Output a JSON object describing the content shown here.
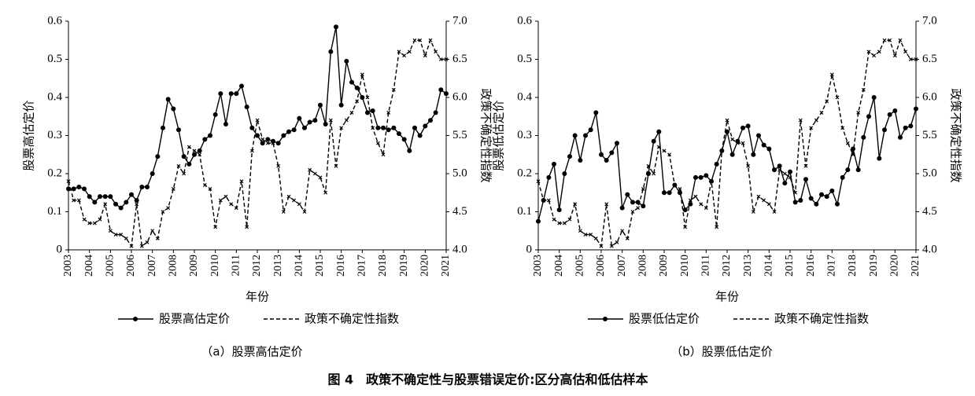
{
  "caption": "图 4　政策不确定性与股票错误定价:区分高估和低估样本",
  "chart_data": [
    {
      "type": "line",
      "title": "（a）股票高估定价",
      "xlabel": "年份",
      "ylabel": "股票高估定价",
      "y2label": "政策不确定性指数",
      "x": [
        2003,
        2003.25,
        2003.5,
        2003.75,
        2004,
        2004.25,
        2004.5,
        2004.75,
        2005,
        2005.25,
        2005.5,
        2005.75,
        2006,
        2006.25,
        2006.5,
        2006.75,
        2007,
        2007.25,
        2007.5,
        2007.75,
        2008,
        2008.25,
        2008.5,
        2008.75,
        2009,
        2009.25,
        2009.5,
        2009.75,
        2010,
        2010.25,
        2010.5,
        2010.75,
        2011,
        2011.25,
        2011.5,
        2011.75,
        2012,
        2012.25,
        2012.5,
        2012.75,
        2013,
        2013.25,
        2013.5,
        2013.75,
        2014,
        2014.25,
        2014.5,
        2014.75,
        2015,
        2015.25,
        2015.5,
        2015.75,
        2016,
        2016.25,
        2016.5,
        2016.75,
        2017,
        2017.25,
        2017.5,
        2017.75,
        2018,
        2018.25,
        2018.5,
        2018.75,
        2019,
        2019.25,
        2019.5,
        2019.75,
        2020,
        2020.25,
        2020.5,
        2020.75,
        2021
      ],
      "xlim": [
        2003,
        2021
      ],
      "xticks": [
        2003,
        2004,
        2005,
        2006,
        2007,
        2008,
        2009,
        2010,
        2011,
        2012,
        2013,
        2014,
        2015,
        2016,
        2017,
        2018,
        2019,
        2020,
        2021
      ],
      "ylim": [
        0,
        0.6
      ],
      "yticks": [
        0,
        0.1,
        0.2,
        0.3,
        0.4,
        0.5,
        0.6
      ],
      "y2lim": [
        4,
        7
      ],
      "y2ticks": [
        {
          "value": 4,
          "label": "4.0"
        },
        4.5,
        {
          "value": 5,
          "label": "5.0"
        },
        5.5,
        {
          "value": 6,
          "label": "6.0"
        },
        6.5,
        {
          "value": 7,
          "label": "7.0"
        }
      ],
      "series": [
        {
          "name": "股票高估定价",
          "color": "#000000",
          "line_style": "solid",
          "values": [
            0.16,
            0.16,
            0.165,
            0.16,
            0.14,
            0.125,
            0.14,
            0.14,
            0.14,
            0.12,
            0.11,
            0.125,
            0.145,
            0.13,
            0.165,
            0.165,
            0.2,
            0.245,
            0.32,
            0.395,
            0.37,
            0.315,
            0.245,
            0.225,
            0.25,
            0.26,
            0.29,
            0.3,
            0.355,
            0.41,
            0.33,
            0.41,
            0.41,
            0.43,
            0.375,
            0.32,
            0.3,
            0.28,
            0.29,
            0.285,
            0.28,
            0.3,
            0.31,
            0.315,
            0.345,
            0.32,
            0.335,
            0.34,
            0.38,
            0.33,
            0.52,
            0.585,
            0.38,
            0.495,
            0.44,
            0.425,
            0.4,
            0.36,
            0.365,
            0.32,
            0.32,
            0.315,
            0.32,
            0.305,
            0.29,
            0.26,
            0.32,
            0.3,
            0.325,
            0.34,
            0.36,
            0.42,
            0.41
          ]
        },
        {
          "name": "政策不确定性指数",
          "color": "#000000",
          "line_style": "dashed",
          "axis": "y2",
          "values": [
            4.9,
            4.65,
            4.65,
            4.4,
            4.35,
            4.35,
            4.4,
            4.6,
            4.25,
            4.2,
            4.2,
            4.15,
            4.05,
            4.6,
            4.05,
            4.1,
            4.25,
            4.15,
            4.5,
            4.55,
            4.8,
            5.1,
            5.0,
            5.35,
            5.3,
            5.25,
            4.85,
            4.8,
            4.3,
            4.65,
            4.7,
            4.6,
            4.55,
            4.9,
            4.3,
            5.3,
            5.7,
            5.45,
            5.4,
            5.4,
            5.1,
            4.5,
            4.7,
            4.65,
            4.6,
            4.5,
            5.05,
            5.0,
            4.95,
            4.75,
            5.7,
            5.1,
            5.6,
            5.7,
            5.8,
            5.95,
            6.3,
            6.0,
            5.6,
            5.4,
            5.25,
            5.8,
            6.1,
            6.6,
            6.55,
            6.6,
            6.75,
            6.75,
            6.55,
            6.75,
            6.6,
            6.5,
            6.5
          ]
        }
      ]
    },
    {
      "type": "line",
      "title": "（b）股票低估定价",
      "xlabel": "年份",
      "ylabel": "股票低估定价",
      "y2label": "政策不确定性指数",
      "x": [
        2003,
        2003.25,
        2003.5,
        2003.75,
        2004,
        2004.25,
        2004.5,
        2004.75,
        2005,
        2005.25,
        2005.5,
        2005.75,
        2006,
        2006.25,
        2006.5,
        2006.75,
        2007,
        2007.25,
        2007.5,
        2007.75,
        2008,
        2008.25,
        2008.5,
        2008.75,
        2009,
        2009.25,
        2009.5,
        2009.75,
        2010,
        2010.25,
        2010.5,
        2010.75,
        2011,
        2011.25,
        2011.5,
        2011.75,
        2012,
        2012.25,
        2012.5,
        2012.75,
        2013,
        2013.25,
        2013.5,
        2013.75,
        2014,
        2014.25,
        2014.5,
        2014.75,
        2015,
        2015.25,
        2015.5,
        2015.75,
        2016,
        2016.25,
        2016.5,
        2016.75,
        2017,
        2017.25,
        2017.5,
        2017.75,
        2018,
        2018.25,
        2018.5,
        2018.75,
        2019,
        2019.25,
        2019.5,
        2019.75,
        2020,
        2020.25,
        2020.5,
        2020.75,
        2021
      ],
      "xlim": [
        2003,
        2021
      ],
      "xticks": [
        2003,
        2004,
        2005,
        2006,
        2007,
        2008,
        2009,
        2010,
        2011,
        2012,
        2013,
        2014,
        2015,
        2016,
        2017,
        2018,
        2019,
        2020,
        2021
      ],
      "ylim": [
        0,
        0.6
      ],
      "yticks": [
        0,
        0.1,
        0.2,
        0.3,
        0.4,
        0.5,
        0.6
      ],
      "y2lim": [
        4,
        7
      ],
      "y2ticks": [
        {
          "value": 4,
          "label": "4.0"
        },
        4.5,
        {
          "value": 5,
          "label": "5.0"
        },
        5.5,
        {
          "value": 6,
          "label": "6.0"
        },
        6.5,
        {
          "value": 7,
          "label": "7.0"
        }
      ],
      "series": [
        {
          "name": "股票低估定价",
          "color": "#000000",
          "line_style": "solid",
          "values": [
            0.075,
            0.13,
            0.19,
            0.225,
            0.105,
            0.2,
            0.245,
            0.3,
            0.235,
            0.3,
            0.315,
            0.36,
            0.25,
            0.235,
            0.255,
            0.28,
            0.11,
            0.145,
            0.125,
            0.125,
            0.115,
            0.2,
            0.285,
            0.31,
            0.15,
            0.15,
            0.17,
            0.15,
            0.105,
            0.12,
            0.19,
            0.19,
            0.195,
            0.18,
            0.225,
            0.26,
            0.31,
            0.25,
            0.285,
            0.32,
            0.325,
            0.25,
            0.3,
            0.275,
            0.265,
            0.21,
            0.22,
            0.175,
            0.205,
            0.125,
            0.13,
            0.185,
            0.135,
            0.12,
            0.145,
            0.14,
            0.155,
            0.12,
            0.19,
            0.21,
            0.265,
            0.21,
            0.295,
            0.35,
            0.4,
            0.24,
            0.315,
            0.355,
            0.365,
            0.295,
            0.32,
            0.325,
            0.37
          ]
        },
        {
          "name": "政策不确定性指数",
          "color": "#000000",
          "line_style": "dashed",
          "axis": "y2",
          "values": [
            4.9,
            4.65,
            4.65,
            4.4,
            4.35,
            4.35,
            4.4,
            4.6,
            4.25,
            4.2,
            4.2,
            4.15,
            4.05,
            4.6,
            4.05,
            4.1,
            4.25,
            4.15,
            4.5,
            4.55,
            4.8,
            5.1,
            5.0,
            5.35,
            5.3,
            5.25,
            4.85,
            4.8,
            4.3,
            4.65,
            4.7,
            4.6,
            4.55,
            4.9,
            4.3,
            5.3,
            5.7,
            5.45,
            5.4,
            5.4,
            5.1,
            4.5,
            4.7,
            4.65,
            4.6,
            4.5,
            5.05,
            5.0,
            4.95,
            4.75,
            5.7,
            5.1,
            5.6,
            5.7,
            5.8,
            5.95,
            6.3,
            6.0,
            5.6,
            5.4,
            5.25,
            5.8,
            6.1,
            6.6,
            6.55,
            6.6,
            6.75,
            6.75,
            6.55,
            6.75,
            6.6,
            6.5,
            6.5
          ]
        }
      ]
    }
  ]
}
